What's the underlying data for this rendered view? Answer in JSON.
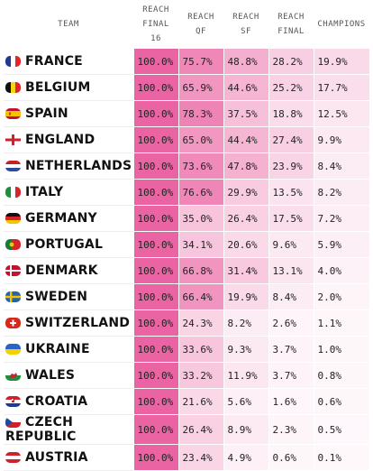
{
  "headers": {
    "team": "TEAM",
    "r16": [
      "REACH",
      "FINAL",
      "16"
    ],
    "qf": [
      "REACH",
      "QF"
    ],
    "sf": [
      "REACH",
      "SF"
    ],
    "final": [
      "REACH",
      "FINAL"
    ],
    "champ": "CHAMPIONS"
  },
  "colors": {
    "accent": "#e8559a"
  },
  "rows": [
    {
      "team": "FRANCE",
      "flag": "france-flag-icon",
      "r16": "100.0%",
      "qf": "75.7%",
      "sf": "48.8%",
      "final": "28.2%",
      "champ": "19.9%",
      "v": [
        100,
        75.7,
        48.8,
        28.2,
        19.9
      ]
    },
    {
      "team": "BELGIUM",
      "flag": "belgium-flag-icon",
      "r16": "100.0%",
      "qf": "65.9%",
      "sf": "44.6%",
      "final": "25.2%",
      "champ": "17.7%",
      "v": [
        100,
        65.9,
        44.6,
        25.2,
        17.7
      ]
    },
    {
      "team": "SPAIN",
      "flag": "spain-flag-icon",
      "r16": "100.0%",
      "qf": "78.3%",
      "sf": "37.5%",
      "final": "18.8%",
      "champ": "12.5%",
      "v": [
        100,
        78.3,
        37.5,
        18.8,
        12.5
      ]
    },
    {
      "team": "ENGLAND",
      "flag": "england-flag-icon",
      "r16": "100.0%",
      "qf": "65.0%",
      "sf": "44.4%",
      "final": "27.4%",
      "champ": "9.9%",
      "v": [
        100,
        65.0,
        44.4,
        27.4,
        9.9
      ]
    },
    {
      "team": "NETHERLANDS",
      "flag": "netherlands-flag-icon",
      "r16": "100.0%",
      "qf": "73.6%",
      "sf": "47.8%",
      "final": "23.9%",
      "champ": "8.4%",
      "v": [
        100,
        73.6,
        47.8,
        23.9,
        8.4
      ]
    },
    {
      "team": "ITALY",
      "flag": "italy-flag-icon",
      "r16": "100.0%",
      "qf": "76.6%",
      "sf": "29.9%",
      "final": "13.5%",
      "champ": "8.2%",
      "v": [
        100,
        76.6,
        29.9,
        13.5,
        8.2
      ]
    },
    {
      "team": "GERMANY",
      "flag": "germany-flag-icon",
      "r16": "100.0%",
      "qf": "35.0%",
      "sf": "26.4%",
      "final": "17.5%",
      "champ": "7.2%",
      "v": [
        100,
        35.0,
        26.4,
        17.5,
        7.2
      ]
    },
    {
      "team": "PORTUGAL",
      "flag": "portugal-flag-icon",
      "r16": "100.0%",
      "qf": "34.1%",
      "sf": "20.6%",
      "final": "9.6%",
      "champ": "5.9%",
      "v": [
        100,
        34.1,
        20.6,
        9.6,
        5.9
      ]
    },
    {
      "team": "DENMARK",
      "flag": "denmark-flag-icon",
      "r16": "100.0%",
      "qf": "66.8%",
      "sf": "31.4%",
      "final": "13.1%",
      "champ": "4.0%",
      "v": [
        100,
        66.8,
        31.4,
        13.1,
        4.0
      ]
    },
    {
      "team": "SWEDEN",
      "flag": "sweden-flag-icon",
      "r16": "100.0%",
      "qf": "66.4%",
      "sf": "19.9%",
      "final": "8.4%",
      "champ": "2.0%",
      "v": [
        100,
        66.4,
        19.9,
        8.4,
        2.0
      ]
    },
    {
      "team": "SWITZERLAND",
      "flag": "switzerland-flag-icon",
      "r16": "100.0%",
      "qf": "24.3%",
      "sf": "8.2%",
      "final": "2.6%",
      "champ": "1.1%",
      "v": [
        100,
        24.3,
        8.2,
        2.6,
        1.1
      ]
    },
    {
      "team": "UKRAINE",
      "flag": "ukraine-flag-icon",
      "r16": "100.0%",
      "qf": "33.6%",
      "sf": "9.3%",
      "final": "3.7%",
      "champ": "1.0%",
      "v": [
        100,
        33.6,
        9.3,
        3.7,
        1.0
      ]
    },
    {
      "team": "WALES",
      "flag": "wales-flag-icon",
      "r16": "100.0%",
      "qf": "33.2%",
      "sf": "11.9%",
      "final": "3.7%",
      "champ": "0.8%",
      "v": [
        100,
        33.2,
        11.9,
        3.7,
        0.8
      ]
    },
    {
      "team": "CROATIA",
      "flag": "croatia-flag-icon",
      "r16": "100.0%",
      "qf": "21.6%",
      "sf": "5.6%",
      "final": "1.6%",
      "champ": "0.6%",
      "v": [
        100,
        21.6,
        5.6,
        1.6,
        0.6
      ]
    },
    {
      "team": "CZECH REPUBLIC",
      "flag": "czech-republic-flag-icon",
      "r16": "100.0%",
      "qf": "26.4%",
      "sf": "8.9%",
      "final": "2.3%",
      "champ": "0.5%",
      "v": [
        100,
        26.4,
        8.9,
        2.3,
        0.5
      ]
    },
    {
      "team": "AUSTRIA",
      "flag": "austria-flag-icon",
      "r16": "100.0%",
      "qf": "23.4%",
      "sf": "4.9%",
      "final": "0.6%",
      "champ": "0.1%",
      "v": [
        100,
        23.4,
        4.9,
        0.6,
        0.1
      ]
    }
  ]
}
